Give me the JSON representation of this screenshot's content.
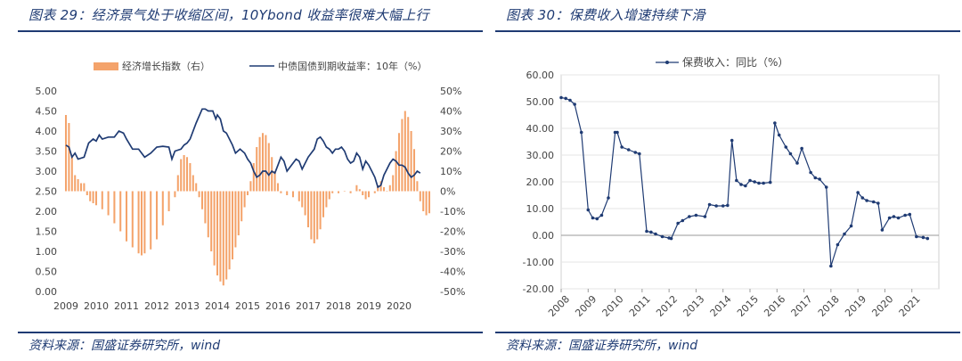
{
  "left_panel": {
    "title": "图表 29：经济景气处于收缩区间，10Ybond 收益率很难大幅上行",
    "source": "资料来源：国盛证券研究所，wind"
  },
  "right_panel": {
    "title": "图表 30：保费收入增速持续下滑",
    "source": "资料来源：国盛证券研究所，wind"
  },
  "colors": {
    "bar": "#f4a36b",
    "line": "#1f3b73",
    "rule": "#1f3b73",
    "grid": "#e6e6e6"
  },
  "chart_data": [
    {
      "type": "bar+line",
      "title": "",
      "legend_placement": "top",
      "left_axis": {
        "ylim": [
          0.0,
          5.0
        ],
        "ticks": [
          "0.00",
          "0.50",
          "1.00",
          "1.50",
          "2.00",
          "2.50",
          "3.00",
          "3.50",
          "4.00",
          "4.50",
          "5.00"
        ]
      },
      "right_axis": {
        "ylim": [
          -50,
          50
        ],
        "ticks": [
          "-50%",
          "-40%",
          "-30%",
          "-20%",
          "-10%",
          "0%",
          "10%",
          "20%",
          "30%",
          "40%",
          "50%"
        ]
      },
      "x_ticks": [
        "2009",
        "2010",
        "2011",
        "2012",
        "2013",
        "2014",
        "2015",
        "2016",
        "2017",
        "2018",
        "2019",
        "2020"
      ],
      "x_range": [
        2009.0,
        2021.0
      ],
      "bar_series": {
        "name": "经济增长指数（右）",
        "axis": "right",
        "points": [
          [
            2009.0,
            38
          ],
          [
            2009.1,
            34
          ],
          [
            2009.2,
            18
          ],
          [
            2009.3,
            8
          ],
          [
            2009.4,
            6
          ],
          [
            2009.5,
            4
          ],
          [
            2009.6,
            4
          ],
          [
            2009.7,
            -2
          ],
          [
            2009.8,
            -5
          ],
          [
            2009.9,
            -6
          ],
          [
            2010.0,
            -7
          ],
          [
            2010.2,
            -9
          ],
          [
            2010.4,
            -12
          ],
          [
            2010.6,
            -16
          ],
          [
            2010.8,
            -20
          ],
          [
            2011.0,
            -25
          ],
          [
            2011.2,
            -28
          ],
          [
            2011.4,
            -31
          ],
          [
            2011.5,
            -32
          ],
          [
            2011.6,
            -31
          ],
          [
            2011.8,
            -29
          ],
          [
            2012.0,
            -24
          ],
          [
            2012.2,
            -17
          ],
          [
            2012.4,
            -10
          ],
          [
            2012.6,
            -3
          ],
          [
            2012.7,
            8
          ],
          [
            2012.8,
            16
          ],
          [
            2012.9,
            18
          ],
          [
            2013.0,
            17
          ],
          [
            2013.1,
            14
          ],
          [
            2013.2,
            8
          ],
          [
            2013.3,
            4
          ],
          [
            2013.4,
            -3
          ],
          [
            2013.5,
            -9
          ],
          [
            2013.6,
            -16
          ],
          [
            2013.7,
            -23
          ],
          [
            2013.8,
            -30
          ],
          [
            2013.9,
            -37
          ],
          [
            2014.0,
            -42
          ],
          [
            2014.1,
            -45
          ],
          [
            2014.2,
            -47
          ],
          [
            2014.3,
            -44
          ],
          [
            2014.4,
            -39
          ],
          [
            2014.5,
            -34
          ],
          [
            2014.6,
            -28
          ],
          [
            2014.7,
            -22
          ],
          [
            2014.8,
            -15
          ],
          [
            2014.9,
            -8
          ],
          [
            2015.0,
            -2
          ],
          [
            2015.1,
            5
          ],
          [
            2015.2,
            14
          ],
          [
            2015.3,
            22
          ],
          [
            2015.4,
            27
          ],
          [
            2015.5,
            29
          ],
          [
            2015.6,
            28
          ],
          [
            2015.7,
            24
          ],
          [
            2015.8,
            17
          ],
          [
            2015.9,
            10
          ],
          [
            2016.0,
            4
          ],
          [
            2016.1,
            -1
          ],
          [
            2016.3,
            -2
          ],
          [
            2016.5,
            -3
          ],
          [
            2016.7,
            -5
          ],
          [
            2016.8,
            -8
          ],
          [
            2016.9,
            -12
          ],
          [
            2017.0,
            -18
          ],
          [
            2017.1,
            -24
          ],
          [
            2017.2,
            -26
          ],
          [
            2017.3,
            -24
          ],
          [
            2017.4,
            -19
          ],
          [
            2017.5,
            -13
          ],
          [
            2017.6,
            -8
          ],
          [
            2017.7,
            -4
          ],
          [
            2017.8,
            -1
          ],
          [
            2018.0,
            -1
          ],
          [
            2018.2,
            0
          ],
          [
            2018.4,
            -1
          ],
          [
            2018.6,
            3
          ],
          [
            2018.7,
            1
          ],
          [
            2018.8,
            -2
          ],
          [
            2018.9,
            -4
          ],
          [
            2019.0,
            -3
          ],
          [
            2019.2,
            -1
          ],
          [
            2019.3,
            3
          ],
          [
            2019.4,
            5
          ],
          [
            2019.5,
            2
          ],
          [
            2019.6,
            0
          ],
          [
            2019.7,
            3
          ],
          [
            2019.8,
            8
          ],
          [
            2019.9,
            20
          ],
          [
            2020.0,
            29
          ],
          [
            2020.1,
            36
          ],
          [
            2020.2,
            40
          ],
          [
            2020.3,
            37
          ],
          [
            2020.4,
            30
          ],
          [
            2020.5,
            21
          ],
          [
            2020.6,
            5
          ],
          [
            2020.7,
            -5
          ],
          [
            2020.8,
            -10
          ],
          [
            2020.9,
            -12
          ],
          [
            2021.0,
            -11
          ]
        ]
      },
      "line_series": {
        "name": "中债国债到期收益率：10年（%）",
        "axis": "left",
        "points": [
          [
            2009.0,
            3.65
          ],
          [
            2009.1,
            3.6
          ],
          [
            2009.2,
            3.35
          ],
          [
            2009.3,
            3.45
          ],
          [
            2009.4,
            3.3
          ],
          [
            2009.6,
            3.35
          ],
          [
            2009.75,
            3.7
          ],
          [
            2009.9,
            3.8
          ],
          [
            2010.0,
            3.75
          ],
          [
            2010.1,
            3.9
          ],
          [
            2010.2,
            3.8
          ],
          [
            2010.4,
            3.85
          ],
          [
            2010.6,
            3.85
          ],
          [
            2010.75,
            4.0
          ],
          [
            2010.9,
            3.95
          ],
          [
            2011.0,
            3.8
          ],
          [
            2011.2,
            3.55
          ],
          [
            2011.4,
            3.55
          ],
          [
            2011.6,
            3.35
          ],
          [
            2011.8,
            3.45
          ],
          [
            2012.0,
            3.6
          ],
          [
            2012.2,
            3.62
          ],
          [
            2012.4,
            3.6
          ],
          [
            2012.5,
            3.3
          ],
          [
            2012.6,
            3.5
          ],
          [
            2012.8,
            3.55
          ],
          [
            2012.9,
            3.65
          ],
          [
            2013.0,
            3.7
          ],
          [
            2013.1,
            3.8
          ],
          [
            2013.3,
            4.2
          ],
          [
            2013.5,
            4.55
          ],
          [
            2013.6,
            4.55
          ],
          [
            2013.7,
            4.5
          ],
          [
            2013.85,
            4.5
          ],
          [
            2013.95,
            4.3
          ],
          [
            2014.0,
            4.4
          ],
          [
            2014.1,
            4.3
          ],
          [
            2014.2,
            4.0
          ],
          [
            2014.3,
            3.95
          ],
          [
            2014.5,
            3.65
          ],
          [
            2014.6,
            3.45
          ],
          [
            2014.75,
            3.55
          ],
          [
            2014.9,
            3.45
          ],
          [
            2015.0,
            3.3
          ],
          [
            2015.1,
            3.2
          ],
          [
            2015.2,
            3.0
          ],
          [
            2015.3,
            2.85
          ],
          [
            2015.4,
            2.9
          ],
          [
            2015.5,
            3.0
          ],
          [
            2015.6,
            3.0
          ],
          [
            2015.7,
            2.9
          ],
          [
            2015.8,
            3.0
          ],
          [
            2015.9,
            2.95
          ],
          [
            2016.0,
            3.15
          ],
          [
            2016.1,
            3.35
          ],
          [
            2016.2,
            3.25
          ],
          [
            2016.3,
            3.0
          ],
          [
            2016.4,
            3.1
          ],
          [
            2016.5,
            3.2
          ],
          [
            2016.6,
            3.3
          ],
          [
            2016.7,
            3.25
          ],
          [
            2016.8,
            3.05
          ],
          [
            2016.9,
            3.2
          ],
          [
            2017.0,
            3.35
          ],
          [
            2017.1,
            3.45
          ],
          [
            2017.2,
            3.55
          ],
          [
            2017.3,
            3.8
          ],
          [
            2017.4,
            3.85
          ],
          [
            2017.5,
            3.75
          ],
          [
            2017.6,
            3.6
          ],
          [
            2017.7,
            3.55
          ],
          [
            2017.8,
            3.45
          ],
          [
            2017.9,
            3.55
          ],
          [
            2018.0,
            3.55
          ],
          [
            2018.1,
            3.6
          ],
          [
            2018.2,
            3.5
          ],
          [
            2018.3,
            3.3
          ],
          [
            2018.4,
            3.2
          ],
          [
            2018.5,
            3.25
          ],
          [
            2018.6,
            3.45
          ],
          [
            2018.7,
            3.35
          ],
          [
            2018.8,
            3.05
          ],
          [
            2018.9,
            3.25
          ],
          [
            2019.0,
            3.15
          ],
          [
            2019.1,
            3.0
          ],
          [
            2019.2,
            2.85
          ],
          [
            2019.3,
            2.6
          ],
          [
            2019.4,
            2.65
          ],
          [
            2019.5,
            2.9
          ],
          [
            2019.6,
            3.05
          ],
          [
            2019.7,
            3.2
          ],
          [
            2019.8,
            3.3
          ],
          [
            2019.9,
            3.25
          ],
          [
            2020.0,
            3.15
          ],
          [
            2020.1,
            3.15
          ],
          [
            2020.2,
            3.1
          ],
          [
            2020.3,
            2.95
          ],
          [
            2020.4,
            2.85
          ],
          [
            2020.5,
            2.9
          ],
          [
            2020.6,
            3.0
          ],
          [
            2020.7,
            2.95
          ]
        ]
      }
    },
    {
      "type": "line",
      "title": "",
      "legend_placement": "top",
      "ylim": [
        -20,
        60
      ],
      "y_ticks": [
        "-20.00",
        "-10.00",
        "0.00",
        "10.00",
        "20.00",
        "30.00",
        "40.00",
        "50.00",
        "60.00"
      ],
      "x_range": [
        2008.0,
        2022.0
      ],
      "x_ticks": [
        "2008",
        "2009",
        "2010",
        "2011",
        "2012",
        "2013",
        "2014",
        "2015",
        "2016",
        "2017",
        "2018",
        "2019",
        "2020",
        "2021"
      ],
      "series": [
        {
          "name": "保费收入：同比（%）",
          "points": [
            [
              2008.0,
              51.5
            ],
            [
              2008.17,
              51.2
            ],
            [
              2008.33,
              50.5
            ],
            [
              2008.5,
              49.0
            ],
            [
              2008.75,
              38.5
            ],
            [
              2009.0,
              9.5
            ],
            [
              2009.17,
              6.5
            ],
            [
              2009.33,
              6.2
            ],
            [
              2009.5,
              7.5
            ],
            [
              2009.75,
              14.0
            ],
            [
              2010.0,
              38.5
            ],
            [
              2010.08,
              38.5
            ],
            [
              2010.25,
              33.0
            ],
            [
              2010.5,
              32.0
            ],
            [
              2010.75,
              31.0
            ],
            [
              2010.9,
              30.5
            ],
            [
              2011.17,
              1.5
            ],
            [
              2011.33,
              1.2
            ],
            [
              2011.5,
              0.5
            ],
            [
              2011.75,
              -0.5
            ],
            [
              2012.0,
              -1.0
            ],
            [
              2012.08,
              -1.2
            ],
            [
              2012.33,
              4.5
            ],
            [
              2012.5,
              5.5
            ],
            [
              2012.75,
              7.0
            ],
            [
              2013.0,
              7.5
            ],
            [
              2013.33,
              7.0
            ],
            [
              2013.5,
              11.5
            ],
            [
              2013.75,
              11.0
            ],
            [
              2014.0,
              11.0
            ],
            [
              2014.17,
              11.2
            ],
            [
              2014.33,
              35.5
            ],
            [
              2014.5,
              20.5
            ],
            [
              2014.67,
              19.0
            ],
            [
              2014.83,
              18.5
            ],
            [
              2015.0,
              20.5
            ],
            [
              2015.17,
              20.0
            ],
            [
              2015.33,
              19.5
            ],
            [
              2015.5,
              19.5
            ],
            [
              2015.75,
              19.8
            ],
            [
              2015.92,
              42.0
            ],
            [
              2016.08,
              37.5
            ],
            [
              2016.33,
              33.0
            ],
            [
              2016.5,
              30.5
            ],
            [
              2016.75,
              27.0
            ],
            [
              2016.92,
              32.5
            ],
            [
              2017.25,
              23.5
            ],
            [
              2017.42,
              21.5
            ],
            [
              2017.58,
              21.0
            ],
            [
              2017.83,
              18.0
            ],
            [
              2018.0,
              -11.5
            ],
            [
              2018.25,
              -3.5
            ],
            [
              2018.5,
              0.5
            ],
            [
              2018.75,
              3.5
            ],
            [
              2019.0,
              16.0
            ],
            [
              2019.17,
              14.0
            ],
            [
              2019.33,
              13.0
            ],
            [
              2019.58,
              12.5
            ],
            [
              2019.75,
              12.0
            ],
            [
              2019.9,
              2.0
            ],
            [
              2020.17,
              6.5
            ],
            [
              2020.33,
              7.0
            ],
            [
              2020.5,
              6.5
            ],
            [
              2020.75,
              7.5
            ],
            [
              2020.92,
              7.8
            ],
            [
              2021.17,
              -0.5
            ],
            [
              2021.42,
              -0.8
            ],
            [
              2021.58,
              -1.2
            ]
          ]
        }
      ]
    }
  ]
}
